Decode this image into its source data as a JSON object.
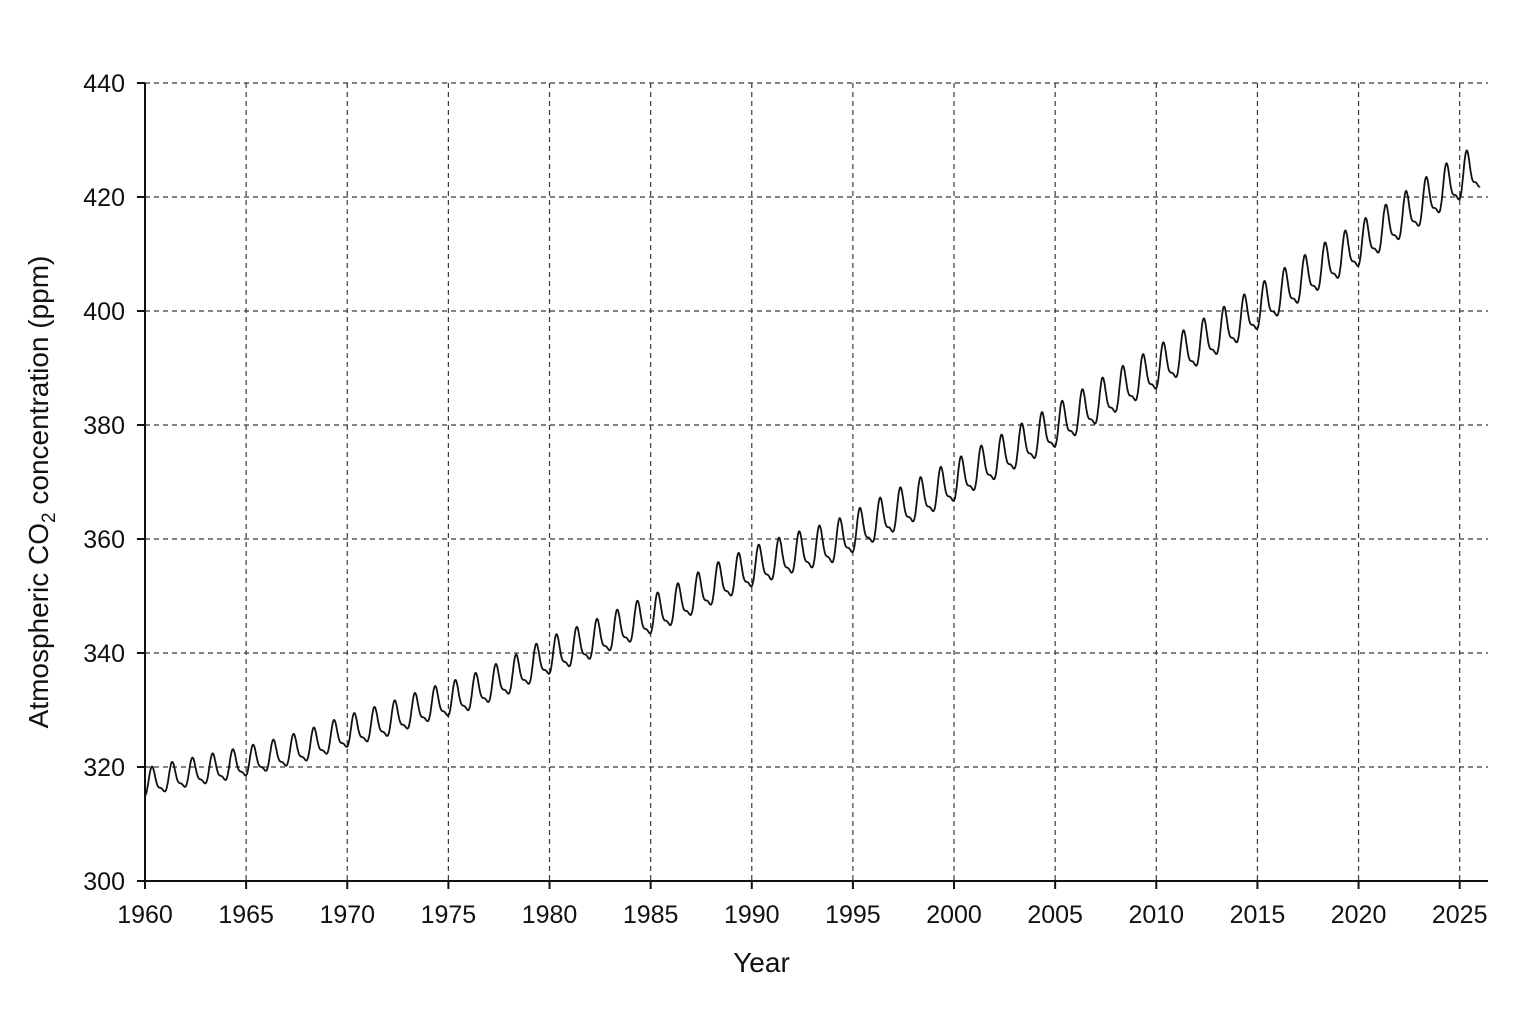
{
  "chart_data": {
    "type": "line",
    "xlabel": "Year",
    "ylabel": {
      "prefix": "Atmospheric CO",
      "subscript": "2",
      "suffix": " concentration (ppm)"
    },
    "xlim": [
      1960,
      2026.4
    ],
    "ylim": [
      300,
      440
    ],
    "x_ticks": [
      1960,
      1965,
      1970,
      1975,
      1980,
      1985,
      1990,
      1995,
      2000,
      2005,
      2010,
      2015,
      2020,
      2025
    ],
    "y_ticks": [
      300,
      320,
      340,
      360,
      380,
      400,
      420,
      440
    ],
    "grid": true,
    "grid_style": "dashed",
    "line_color": "#111111",
    "seasonal_cycle": true,
    "series": [
      {
        "x": [
          1960.0,
          1962.0,
          1964.0,
          1966.0,
          1968.0,
          1970.0,
          1972.0,
          1974.0,
          1976.0,
          1978.0,
          1980.0,
          1982.0,
          1984.0,
          1986.0,
          1988.0,
          1990.0,
          1992.0,
          1994.0,
          1996.0,
          1998.0,
          2000.0,
          2002.0,
          2004.0,
          2006.0,
          2008.0,
          2010.0,
          2012.0,
          2014.0,
          2016.0,
          2018.0,
          2020.0,
          2022.0,
          2024.0,
          2026.0
        ],
        "y": [
          316.9,
          318.5,
          319.8,
          321.4,
          323.3,
          325.8,
          327.8,
          330.4,
          332.4,
          335.4,
          339.0,
          341.6,
          344.7,
          347.6,
          351.3,
          354.5,
          356.9,
          358.8,
          362.4,
          366.0,
          369.6,
          373.4,
          377.2,
          381.2,
          385.3,
          389.4,
          393.5,
          397.6,
          402.3,
          406.8,
          411.0,
          415.7,
          420.5,
          425.0
        ],
        "seasonal_amplitude": [
          2.2,
          2.2,
          2.3,
          2.3,
          2.4,
          2.5,
          2.6,
          2.6,
          2.7,
          2.8,
          2.9,
          2.9,
          3.0,
          3.0,
          3.1,
          3.1,
          3.1,
          3.2,
          3.2,
          3.2,
          3.2,
          3.2,
          3.3,
          3.3,
          3.3,
          3.3,
          3.4,
          3.4,
          3.4,
          3.4,
          3.4,
          3.4,
          3.5,
          3.5
        ]
      }
    ]
  }
}
